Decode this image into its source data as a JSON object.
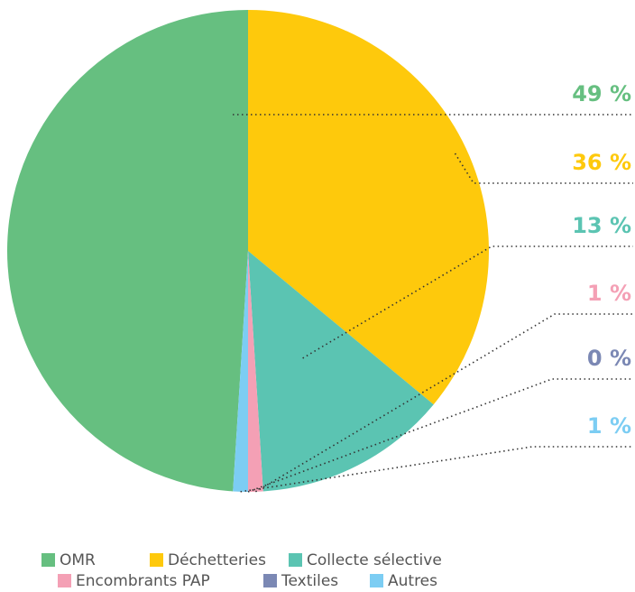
{
  "chart_data": {
    "type": "pie",
    "categories": [
      "OMR",
      "Déchetteries",
      "Collecte sélective",
      "Encombrants PAP",
      "Textiles",
      "Autres"
    ],
    "values": [
      49,
      36,
      13,
      1,
      0,
      1
    ],
    "value_labels": [
      "49 %",
      "36 %",
      "13 %",
      "1 %",
      "0 %",
      "1 %"
    ],
    "colors": [
      "#66bf80",
      "#fec90c",
      "#5bc4b2",
      "#f4a0b5",
      "#7b88b4",
      "#7ccdf3"
    ]
  }
}
